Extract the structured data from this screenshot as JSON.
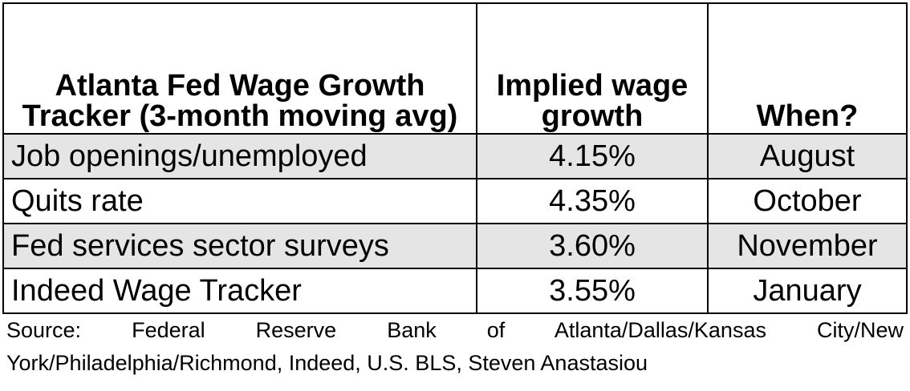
{
  "table": {
    "headers": {
      "tracker": "Atlanta Fed Wage Growth Tracker (3-month moving avg)",
      "implied": "Implied wage growth",
      "when": "When?"
    },
    "rows": [
      {
        "name": "Job openings/unemployed",
        "value": "4.15%",
        "when": "August"
      },
      {
        "name": "Quits rate",
        "value": "4.35%",
        "when": "October"
      },
      {
        "name": "Fed services sector surveys",
        "value": "3.60%",
        "when": "November"
      },
      {
        "name": "Indeed Wage Tracker",
        "value": "3.55%",
        "when": "January"
      }
    ],
    "shaded_color": "#e5e5e5"
  },
  "source": {
    "text": "Source: Federal Reserve Bank of Atlanta/Dallas/Kansas City/New York/Philadelphia/Richmond, Indeed, U.S. BLS, Steven Anastasiou"
  }
}
